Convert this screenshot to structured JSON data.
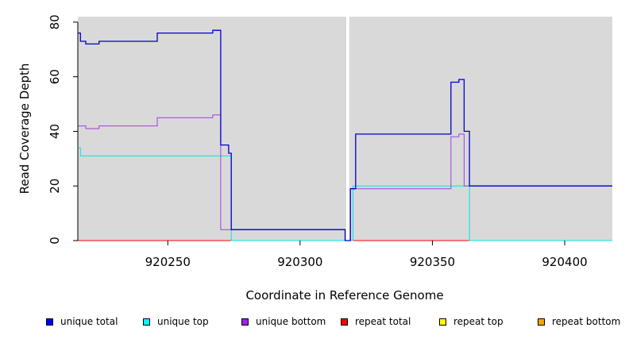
{
  "chart_data": {
    "type": "line",
    "title": "",
    "xlabel": "Coordinate in Reference Genome",
    "ylabel": "Read Coverage Depth",
    "xlim": [
      920216,
      920418
    ],
    "ylim": [
      0,
      82
    ],
    "xticks": [
      "920250",
      "920300",
      "920350",
      "920400"
    ],
    "xtick_values": [
      920250,
      920300,
      920350,
      920400
    ],
    "yticks": [
      "0",
      "20",
      "40",
      "60",
      "80"
    ],
    "ytick_values": [
      0,
      20,
      40,
      60,
      80
    ],
    "background": "#d9d9d9",
    "gap": [
      920317,
      920319
    ],
    "legend_position": "bottom",
    "series": [
      {
        "name": "unique total",
        "color": "#0000cc",
        "x": [
          920216,
          920217,
          920219,
          920224,
          920246,
          920267,
          920270,
          920273,
          920274,
          920317,
          920319,
          920321,
          920357,
          920360,
          920362,
          920364,
          920418
        ],
        "y": [
          76,
          73,
          72,
          73,
          76,
          77,
          35,
          32,
          4,
          0,
          19,
          39,
          58,
          59,
          40,
          20,
          20
        ]
      },
      {
        "name": "unique top",
        "color": "#00e5e5",
        "x": [
          920216,
          920217,
          920274,
          920317,
          920320,
          920364,
          920418
        ],
        "y": [
          34,
          31,
          0,
          0,
          20,
          0,
          0
        ]
      },
      {
        "name": "unique bottom",
        "color": "#a040e0",
        "x": [
          920216,
          920219,
          920224,
          920246,
          920267,
          920270,
          920274,
          920317,
          920319,
          920357,
          920360,
          920362,
          920418
        ],
        "y": [
          42,
          41,
          42,
          45,
          46,
          4,
          4,
          0,
          19,
          38,
          39,
          20,
          20
        ]
      },
      {
        "name": "repeat total",
        "color": "#ff0000",
        "x": [
          920216,
          920418
        ],
        "y": [
          0,
          0
        ]
      },
      {
        "name": "repeat top",
        "color": "#ffff00",
        "x": [
          920216,
          920418
        ],
        "y": [
          0,
          0
        ]
      },
      {
        "name": "repeat bottom",
        "color": "#ffa500",
        "x": [
          920216,
          920418
        ],
        "y": [
          0,
          0
        ]
      }
    ]
  }
}
